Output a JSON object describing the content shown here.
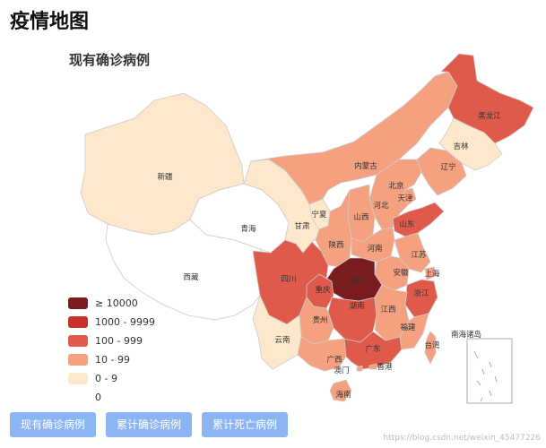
{
  "page_title": "疫情地图",
  "map_title": "现有确诊病例",
  "colors": {
    "level_10000": "#7a1c1e",
    "level_1000": "#c8302c",
    "level_100": "#e05a4b",
    "level_10": "#f5a07f",
    "level_1": "#fde8cc",
    "level_0": "#ffffff",
    "border": "#cccccc",
    "tab_bg": "#8ab4f2"
  },
  "legend": [
    {
      "label": "≥ 10000",
      "level": "level_10000"
    },
    {
      "label": "1000 - 9999",
      "level": "level_1000"
    },
    {
      "label": "100 - 999",
      "level": "level_100"
    },
    {
      "label": "10 - 99",
      "level": "level_10"
    },
    {
      "label": "0 - 9",
      "level": "level_1"
    },
    {
      "label": "0",
      "level": "level_0"
    }
  ],
  "provinces": [
    {
      "name": "新疆",
      "level": "level_1"
    },
    {
      "name": "西藏",
      "level": "level_0"
    },
    {
      "name": "青海",
      "level": "level_0"
    },
    {
      "name": "甘肃",
      "level": "level_1"
    },
    {
      "name": "宁夏",
      "level": "level_1"
    },
    {
      "name": "内蒙古",
      "level": "level_10"
    },
    {
      "name": "黑龙江",
      "level": "level_100"
    },
    {
      "name": "吉林",
      "level": "level_1"
    },
    {
      "name": "辽宁",
      "level": "level_10"
    },
    {
      "name": "北京",
      "level": "level_100"
    },
    {
      "name": "天津",
      "level": "level_10"
    },
    {
      "name": "河北",
      "level": "level_10"
    },
    {
      "name": "山西",
      "level": "level_10"
    },
    {
      "name": "陕西",
      "level": "level_10"
    },
    {
      "name": "山东",
      "level": "level_100"
    },
    {
      "name": "河南",
      "level": "level_10"
    },
    {
      "name": "江苏",
      "level": "level_10"
    },
    {
      "name": "安徽",
      "level": "level_10"
    },
    {
      "name": "上海",
      "level": "level_10"
    },
    {
      "name": "湖北",
      "level": "level_10000"
    },
    {
      "name": "四川",
      "level": "level_100"
    },
    {
      "name": "重庆",
      "level": "level_100"
    },
    {
      "name": "浙江",
      "level": "level_100"
    },
    {
      "name": "湖南",
      "level": "level_100"
    },
    {
      "name": "江西",
      "level": "level_10"
    },
    {
      "name": "贵州",
      "level": "level_10"
    },
    {
      "name": "福建",
      "level": "level_10"
    },
    {
      "name": "云南",
      "level": "level_1"
    },
    {
      "name": "广西",
      "level": "level_10"
    },
    {
      "name": "广东",
      "level": "level_100"
    },
    {
      "name": "台湾",
      "level": "level_10"
    },
    {
      "name": "澳门",
      "level": "level_10"
    },
    {
      "name": "香港",
      "level": "level_10"
    },
    {
      "name": "海南",
      "level": "level_10"
    },
    {
      "name": "南海诸岛",
      "level": "level_0"
    }
  ],
  "tabs": [
    "现有确诊病例",
    "累计确诊病例",
    "累计死亡病例"
  ],
  "watermark": "https://blog.csdn.net/weixin_45477226"
}
